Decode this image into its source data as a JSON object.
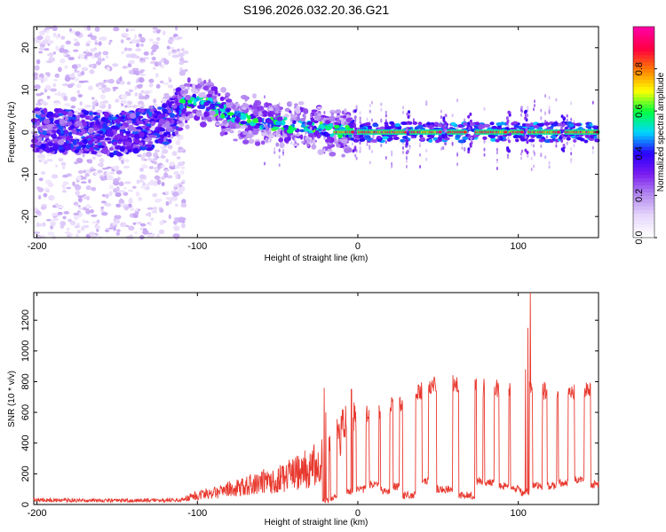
{
  "figure_title": "S196.2026.032.20.36.G21",
  "colors": {
    "snr_line": "#e8392f",
    "axis": "#000000"
  },
  "chart_data": [
    {
      "type": "heatmap",
      "title": "S196.2026.032.20.36.G21",
      "xlabel": "Height of straight line (km)",
      "ylabel": "Frequency (Hz)",
      "xlim": [
        -202,
        150
      ],
      "ylim": [
        -25,
        25
      ],
      "xticks": [
        {
          "v": -200,
          "t": "-200"
        },
        {
          "v": -100,
          "t": "-100"
        },
        {
          "v": 0,
          "t": "0"
        },
        {
          "v": 100,
          "t": "100"
        }
      ],
      "yticks": [
        {
          "v": -20,
          "t": "-20"
        },
        {
          "v": -10,
          "t": "-10"
        },
        {
          "v": 0,
          "t": "0"
        },
        {
          "v": 10,
          "t": "10"
        },
        {
          "v": 20,
          "t": "20"
        }
      ],
      "colorbar": {
        "label": "Normalized spectral amplitude",
        "range": [
          0,
          1
        ],
        "ticks": [
          {
            "v": 0.0,
            "t": "0.0"
          },
          {
            "v": 0.2,
            "t": "0.2"
          },
          {
            "v": 0.4,
            "t": "0.4"
          },
          {
            "v": 0.6,
            "t": "0.6"
          },
          {
            "v": 0.8,
            "t": "0.8"
          }
        ],
        "colormap": [
          "#ffffff",
          "#e6d6fb",
          "#b48af0",
          "#7a1cf0",
          "#2a00ff",
          "#00d8ff",
          "#00ff40",
          "#ffff00",
          "#ff8000",
          "#ff0040",
          "#ff00a0"
        ]
      },
      "ridge": [
        {
          "x": -200,
          "f": 0.5
        },
        {
          "x": -150,
          "f": -0.5
        },
        {
          "x": -120,
          "f": 1.5
        },
        {
          "x": -110,
          "f": 6
        },
        {
          "x": -100,
          "f": 7.5
        },
        {
          "x": -90,
          "f": 6
        },
        {
          "x": -80,
          "f": 4
        },
        {
          "x": -70,
          "f": 3
        },
        {
          "x": -60,
          "f": 2.5
        },
        {
          "x": -50,
          "f": 2
        },
        {
          "x": -40,
          "f": 1.5
        },
        {
          "x": -30,
          "f": 1
        },
        {
          "x": -20,
          "f": 0.5
        },
        {
          "x": -10,
          "f": 0.3
        },
        {
          "x": 0,
          "f": 0
        },
        {
          "x": 150,
          "f": 0
        }
      ],
      "strong_segments": [
        [
          -14,
          -3
        ],
        [
          0,
          30
        ],
        [
          32,
          52
        ],
        [
          56,
          67
        ],
        [
          74,
          93
        ],
        [
          95,
          103
        ],
        [
          107,
          126
        ],
        [
          130,
          150
        ]
      ],
      "dropouts": [
        -2,
        31,
        54,
        70,
        94,
        105,
        128
      ]
    },
    {
      "type": "line",
      "xlabel": "Height of straight line (km)",
      "ylabel": "SNR (10 * v/v)",
      "xlim": [
        -202,
        150
      ],
      "ylim": [
        0,
        1380
      ],
      "xticks": [
        {
          "v": -200,
          "t": "-200"
        },
        {
          "v": -100,
          "t": "-100"
        },
        {
          "v": 0,
          "t": "0"
        },
        {
          "v": 100,
          "t": "100"
        }
      ],
      "yticks": [
        {
          "v": 0,
          "t": "0"
        },
        {
          "v": 200,
          "t": "200"
        },
        {
          "v": 400,
          "t": "400"
        },
        {
          "v": 600,
          "t": "600"
        },
        {
          "v": 800,
          "t": "800"
        },
        {
          "v": 1000,
          "t": "1000"
        },
        {
          "v": 1200,
          "t": "1200"
        }
      ],
      "baseline": [
        {
          "x": -202,
          "y": 30
        },
        {
          "x": -150,
          "y": 25
        },
        {
          "x": -110,
          "y": 30
        },
        {
          "x": -100,
          "y": 60
        },
        {
          "x": -90,
          "y": 80
        },
        {
          "x": -80,
          "y": 100
        },
        {
          "x": -70,
          "y": 120
        },
        {
          "x": -60,
          "y": 150
        },
        {
          "x": -50,
          "y": 160
        },
        {
          "x": -40,
          "y": 200
        },
        {
          "x": -30,
          "y": 240
        },
        {
          "x": -20,
          "y": 300
        },
        {
          "x": -15,
          "y": 380
        },
        {
          "x": -10,
          "y": 460
        },
        {
          "x": -5,
          "y": 520
        },
        {
          "x": 0,
          "y": 560
        },
        {
          "x": 10,
          "y": 600
        },
        {
          "x": 20,
          "y": 640
        },
        {
          "x": 30,
          "y": 680
        },
        {
          "x": 40,
          "y": 740
        },
        {
          "x": 50,
          "y": 790
        },
        {
          "x": 60,
          "y": 800
        },
        {
          "x": 70,
          "y": 760
        },
        {
          "x": 80,
          "y": 760
        },
        {
          "x": 90,
          "y": 750
        },
        {
          "x": 100,
          "y": 760
        },
        {
          "x": 110,
          "y": 740
        },
        {
          "x": 120,
          "y": 740
        },
        {
          "x": 130,
          "y": 740
        },
        {
          "x": 140,
          "y": 740
        },
        {
          "x": 150,
          "y": 720
        }
      ],
      "dips": [
        {
          "x": -20,
          "w": 2,
          "y": 30
        },
        {
          "x": -15,
          "w": 2,
          "y": 40
        },
        {
          "x": -5,
          "w": 2,
          "y": 80
        },
        {
          "x": 2,
          "w": 3,
          "y": 100
        },
        {
          "x": 10,
          "w": 3,
          "y": 130
        },
        {
          "x": 17,
          "w": 3,
          "y": 90
        },
        {
          "x": 24,
          "w": 2,
          "y": 120
        },
        {
          "x": 32,
          "w": 4,
          "y": 60
        },
        {
          "x": 42,
          "w": 2,
          "y": 150
        },
        {
          "x": 54,
          "w": 5,
          "y": 100
        },
        {
          "x": 68,
          "w": 5,
          "y": 60
        },
        {
          "x": 76,
          "w": 2,
          "y": 150
        },
        {
          "x": 82,
          "w": 3,
          "y": 140
        },
        {
          "x": 91,
          "w": 3,
          "y": 120
        },
        {
          "x": 98,
          "w": 3,
          "y": 110
        },
        {
          "x": 104,
          "w": 3,
          "y": 80
        },
        {
          "x": 112,
          "w": 3,
          "y": 120
        },
        {
          "x": 121,
          "w": 3,
          "y": 120
        },
        {
          "x": 128,
          "w": 3,
          "y": 140
        },
        {
          "x": 138,
          "w": 3,
          "y": 160
        },
        {
          "x": 148,
          "w": 3,
          "y": 130
        }
      ],
      "spikes": [
        {
          "x": 107.5,
          "y": 1380
        },
        {
          "x": 106,
          "y": 1150
        },
        {
          "x": 104.5,
          "y": 880
        },
        {
          "x": -21,
          "y": 760
        },
        {
          "x": -4,
          "y": 750
        },
        {
          "x": -20,
          "y": 600
        }
      ]
    }
  ]
}
